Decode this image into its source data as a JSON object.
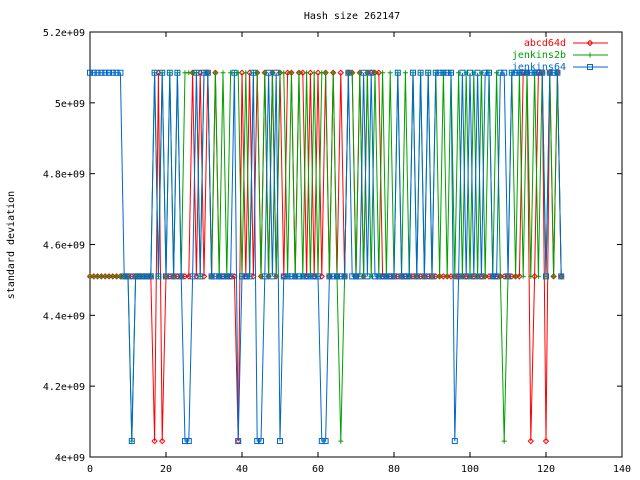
{
  "chart_data": {
    "type": "line",
    "title": "Hash size 262147",
    "xlabel": "",
    "ylabel": "standard deviation",
    "xlim": [
      0,
      140
    ],
    "ylim": [
      4000000000,
      5200000000
    ],
    "xticks": [
      0,
      20,
      40,
      60,
      80,
      100,
      120,
      140
    ],
    "xtick_labels": [
      "0",
      "20",
      "40",
      "60",
      "80",
      "100",
      "120",
      "140"
    ],
    "yticks": [
      4000000000,
      4200000000,
      4400000000,
      4600000000,
      4800000000,
      5000000000,
      5200000000
    ],
    "ytick_labels": [
      "4e+09",
      "4.2e+09",
      "4.4e+09",
      "4.6e+09",
      "4.8e+09",
      "5e+09",
      "5.2e+09"
    ],
    "grid": false,
    "legend_position": "top-right",
    "levels": {
      "high": 5085000000,
      "mid": 4510000000,
      "low": 4045000000
    },
    "x_count": 125,
    "series": [
      {
        "name": "abcd64d",
        "color": "#ff0000",
        "marker": "diamond",
        "levels": "00000000000000000L2L0000000202020200000L2020202020202202202020202020220202222000000000000000000000000000000000000022L022L20202"
      },
      {
        "name": "jenkins2b",
        "color": "#00a000",
        "marker": "plus",
        "levels": "00000000000L000002020202022220220202022202022020202202020202022020L022020202020202020202020202020202020202020L0202020202020202"
      },
      {
        "name": "jenkins64",
        "color": "#0066cc",
        "marker": "square",
        "levels": "22222222200L0000020202020LL020220000002L0002LL0202L0000000000LL000002000202000000200020202022222L020202022002202222222220222"
      }
    ]
  }
}
